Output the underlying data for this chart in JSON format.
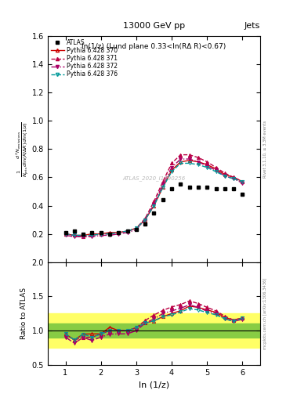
{
  "title": "13000 GeV pp",
  "title_right": "Jets",
  "annotation": "ln(1/z) (Lund plane 0.33<ln(RΔ R)<0.67)",
  "watermark": "ATLAS_2020_I1790256",
  "rivet_label": "Rivet 3.1.10, ≥ 3.3M events",
  "mcplots_label": "mcplots.cern.ch [arXiv:1306.3436]",
  "xlabel": "ln (1/z)",
  "ylabel_ratio": "Ratio to ATLAS",
  "xlim": [
    0.5,
    6.5
  ],
  "ylim_main": [
    0.0,
    1.6
  ],
  "ylim_ratio": [
    0.5,
    2.0
  ],
  "yticks_main": [
    0.2,
    0.4,
    0.6,
    0.8,
    1.0,
    1.2,
    1.4,
    1.6
  ],
  "yticks_ratio": [
    0.5,
    1.0,
    1.5,
    2.0
  ],
  "xticks": [
    1,
    2,
    3,
    4,
    5,
    6
  ],
  "atlas_x": [
    1.0,
    1.25,
    1.5,
    1.75,
    2.0,
    2.25,
    2.5,
    2.75,
    3.0,
    3.25,
    3.5,
    3.75,
    4.0,
    4.25,
    4.5,
    4.75,
    5.0,
    5.25,
    5.5,
    5.75,
    6.0
  ],
  "atlas_y": [
    0.21,
    0.22,
    0.2,
    0.21,
    0.21,
    0.2,
    0.21,
    0.22,
    0.23,
    0.27,
    0.35,
    0.44,
    0.52,
    0.55,
    0.53,
    0.53,
    0.53,
    0.52,
    0.52,
    0.52,
    0.48
  ],
  "py370_x": [
    1.0,
    1.25,
    1.5,
    1.75,
    2.0,
    2.25,
    2.5,
    2.75,
    3.0,
    3.25,
    3.5,
    3.75,
    4.0,
    4.25,
    4.5,
    4.75,
    5.0,
    5.25,
    5.5,
    5.75,
    6.0
  ],
  "py370_y": [
    0.2,
    0.19,
    0.19,
    0.2,
    0.2,
    0.21,
    0.21,
    0.22,
    0.24,
    0.3,
    0.4,
    0.53,
    0.65,
    0.71,
    0.72,
    0.71,
    0.69,
    0.66,
    0.62,
    0.6,
    0.57
  ],
  "py371_x": [
    1.0,
    1.25,
    1.5,
    1.75,
    2.0,
    2.25,
    2.5,
    2.75,
    3.0,
    3.25,
    3.5,
    3.75,
    4.0,
    4.25,
    4.5,
    4.75,
    5.0,
    5.25,
    5.5,
    5.75,
    6.0
  ],
  "py371_y": [
    0.2,
    0.19,
    0.18,
    0.19,
    0.2,
    0.2,
    0.21,
    0.22,
    0.24,
    0.31,
    0.43,
    0.57,
    0.7,
    0.76,
    0.76,
    0.74,
    0.71,
    0.67,
    0.63,
    0.6,
    0.57
  ],
  "py372_x": [
    1.0,
    1.25,
    1.5,
    1.75,
    2.0,
    2.25,
    2.5,
    2.75,
    3.0,
    3.25,
    3.5,
    3.75,
    4.0,
    4.25,
    4.5,
    4.75,
    5.0,
    5.25,
    5.5,
    5.75,
    6.0
  ],
  "py372_y": [
    0.19,
    0.18,
    0.18,
    0.18,
    0.19,
    0.19,
    0.2,
    0.21,
    0.23,
    0.3,
    0.41,
    0.55,
    0.67,
    0.73,
    0.73,
    0.71,
    0.68,
    0.65,
    0.61,
    0.59,
    0.56
  ],
  "py376_x": [
    1.0,
    1.25,
    1.5,
    1.75,
    2.0,
    2.25,
    2.5,
    2.75,
    3.0,
    3.25,
    3.5,
    3.75,
    4.0,
    4.25,
    4.5,
    4.75,
    5.0,
    5.25,
    5.5,
    5.75,
    6.0
  ],
  "py376_y": [
    0.2,
    0.19,
    0.19,
    0.19,
    0.2,
    0.2,
    0.21,
    0.22,
    0.24,
    0.3,
    0.4,
    0.53,
    0.64,
    0.7,
    0.7,
    0.69,
    0.67,
    0.64,
    0.61,
    0.59,
    0.57
  ],
  "color_370": "#cc0000",
  "color_371": "#bb0044",
  "color_372": "#aa0066",
  "color_376": "#009999",
  "green_band_low": 0.9,
  "green_band_high": 1.1,
  "yellow_band_low": 0.75,
  "yellow_band_high": 1.25
}
